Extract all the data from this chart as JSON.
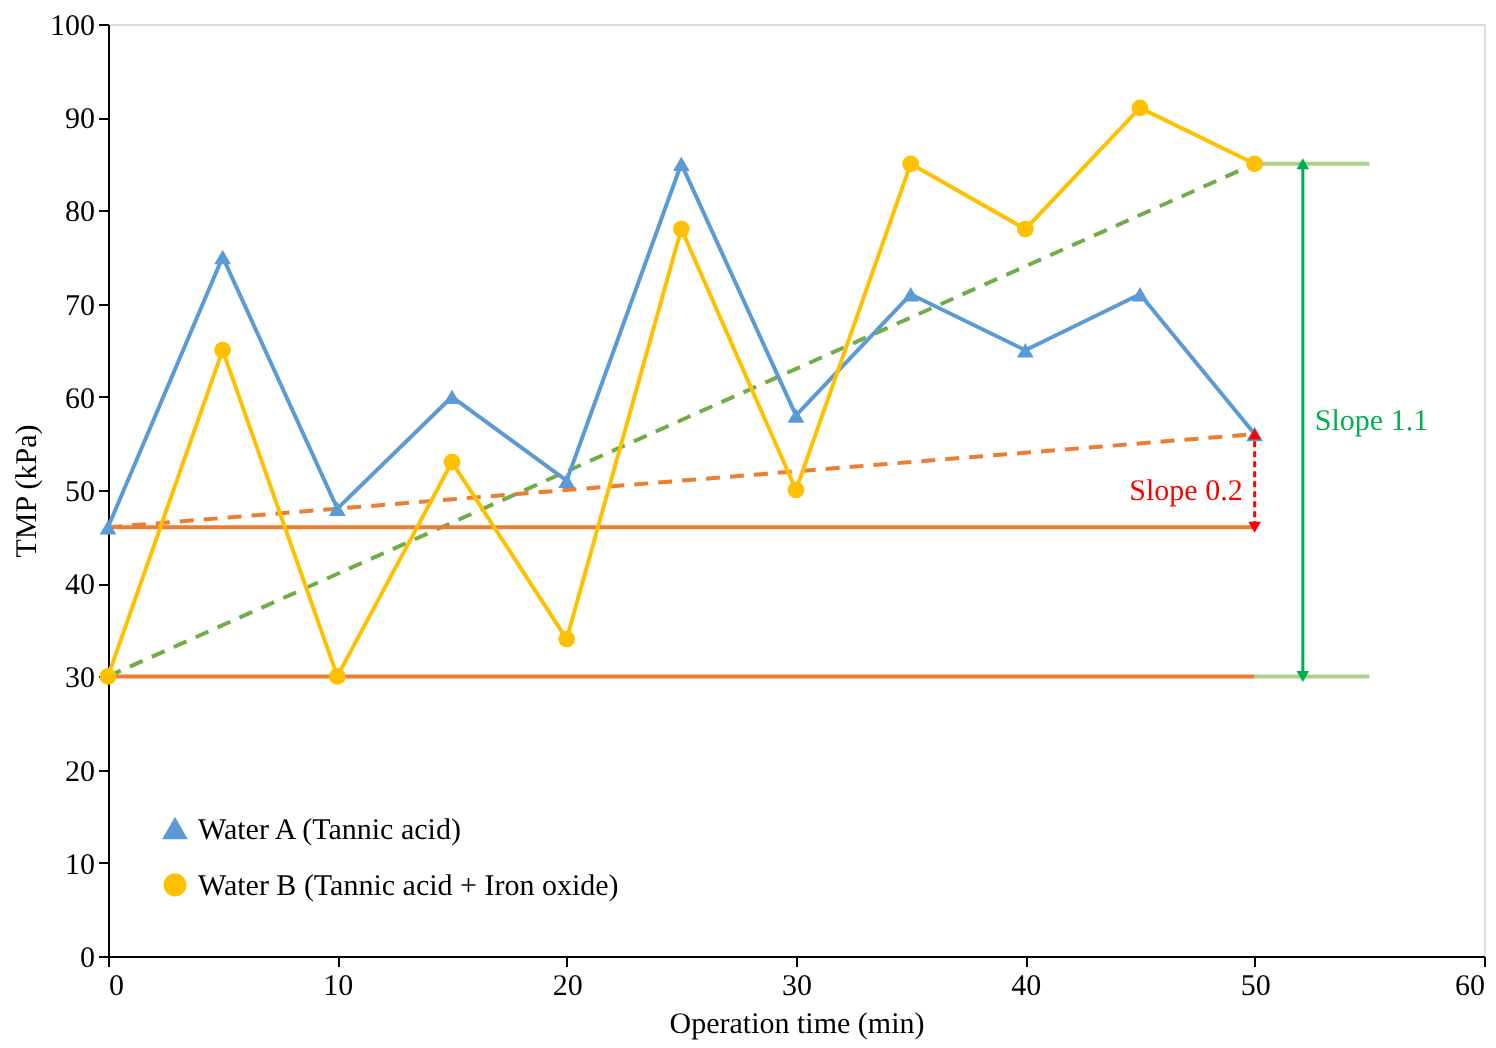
{
  "chart_data": {
    "type": "line",
    "xlabel": "Operation time (min)",
    "ylabel": "TMP (kPa)",
    "x": [
      0,
      5,
      10,
      15,
      20,
      25,
      30,
      35,
      40,
      45,
      50
    ],
    "series": [
      {
        "name": "Water A (Tannic acid)",
        "color": "#5b9bd5",
        "marker": "triangle",
        "values": [
          46,
          75,
          48,
          60,
          51,
          85,
          58,
          71,
          65,
          71,
          56
        ]
      },
      {
        "name": "Water B (Tannic acid + Iron oxide)",
        "color": "#ffc000",
        "marker": "circle",
        "values": [
          30,
          65,
          30,
          53,
          34,
          78,
          50,
          85,
          78,
          91,
          85
        ]
      },
      {
        "color": "#70ad47",
        "line_style": "dashed",
        "x": [
          0,
          50
        ],
        "values": [
          30,
          85
        ]
      },
      {
        "color": "#ed7d31",
        "line_style": "dashed",
        "x": [
          0,
          50
        ],
        "values": [
          46,
          56
        ]
      },
      {
        "color": "#ed7d31",
        "x": [
          0,
          50
        ],
        "values": [
          46,
          46
        ]
      },
      {
        "color": "#ed7d31",
        "x": [
          0,
          50
        ],
        "values": [
          30,
          30
        ]
      },
      {
        "color": "#a9d18e",
        "x": [
          50,
          55
        ],
        "values": [
          85,
          85
        ]
      },
      {
        "color": "#a9d18e",
        "x": [
          50,
          55
        ],
        "values": [
          30,
          30
        ]
      }
    ],
    "annotations": [
      "Slope 1.1",
      "Slope 0.2"
    ],
    "xlim": [
      0,
      60
    ],
    "xticks": [
      0,
      10,
      20,
      30,
      40,
      50,
      60
    ],
    "ylim": [
      0,
      100
    ],
    "yticks": [
      0,
      10,
      20,
      30,
      40,
      50,
      60,
      70,
      80,
      90,
      100
    ],
    "grid": false,
    "legend": "bottom left"
  }
}
